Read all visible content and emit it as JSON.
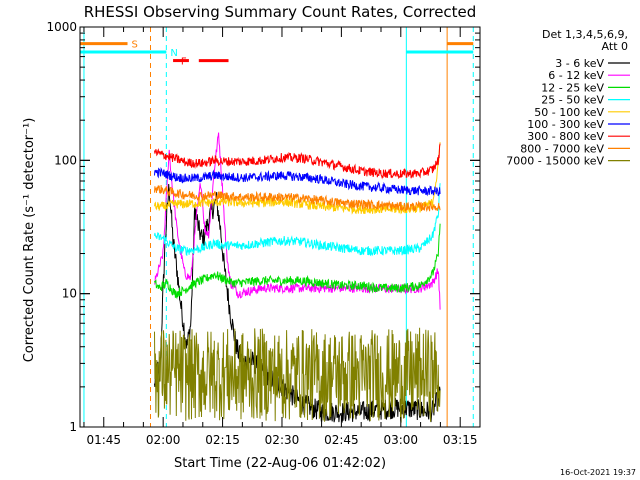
{
  "chart_data": {
    "type": "line",
    "title": "RHESSI Observing Summary Count Rates, Corrected",
    "xlabel": "Start Time (22-Aug-06 01:42:02)",
    "ylabel": "Corrected Count Rate (s⁻¹ detector⁻¹)",
    "yscale": "log",
    "ylim": [
      1,
      1000
    ],
    "xlim_minutes": [
      99,
      200
    ],
    "x_ticks": [
      {
        "label": "01:45",
        "m": 105
      },
      {
        "label": "02:00",
        "m": 120
      },
      {
        "label": "02:15",
        "m": 135
      },
      {
        "label": "02:30",
        "m": 150
      },
      {
        "label": "02:45",
        "m": 165
      },
      {
        "label": "03:00",
        "m": 180
      },
      {
        "label": "03:15",
        "m": 195
      }
    ],
    "y_ticks": [
      {
        "label": "1",
        "v": 1
      },
      {
        "label": "10",
        "v": 10
      },
      {
        "label": "100",
        "v": 100
      },
      {
        "label": "1000",
        "v": 1000
      }
    ],
    "legend_header": [
      "Det 1,3,4,5,6,9,",
      "Att 0"
    ],
    "footer": "16-Oct-2021 19:37",
    "series": [
      {
        "name": "3 - 6 keV",
        "color": "#000000",
        "points": [
          [
            117.8,
            2
          ],
          [
            118.5,
            3
          ],
          [
            119,
            2
          ],
          [
            120.5,
            25
          ],
          [
            121.5,
            65
          ],
          [
            122,
            40
          ],
          [
            122.5,
            25
          ],
          [
            123.5,
            15
          ],
          [
            124.5,
            8
          ],
          [
            126,
            4
          ],
          [
            127,
            6
          ],
          [
            128,
            45
          ],
          [
            129,
            30
          ],
          [
            130,
            25
          ],
          [
            132,
            40
          ],
          [
            133.5,
            50
          ],
          [
            134.5,
            30
          ],
          [
            135.5,
            15
          ],
          [
            137,
            7
          ],
          [
            138.5,
            4
          ],
          [
            140,
            3
          ],
          [
            142,
            3.2
          ],
          [
            146,
            2.5
          ],
          [
            150,
            2
          ],
          [
            155,
            1.5
          ],
          [
            160,
            1.3
          ],
          [
            170,
            1.3
          ],
          [
            180,
            1.4
          ],
          [
            188,
            1.3
          ],
          [
            190,
            1.8
          ]
        ]
      },
      {
        "name": "6 - 12 keV",
        "color": "#ff00ff",
        "points": [
          [
            117.8,
            12
          ],
          [
            118.5,
            14
          ],
          [
            120,
            20
          ],
          [
            121.5,
            120
          ],
          [
            122.5,
            55
          ],
          [
            123.5,
            30
          ],
          [
            124.5,
            20
          ],
          [
            125.5,
            14
          ],
          [
            127,
            13
          ],
          [
            128.5,
            40
          ],
          [
            129.5,
            70
          ],
          [
            130.5,
            30
          ],
          [
            131.5,
            28
          ],
          [
            133,
            90
          ],
          [
            134,
            160
          ],
          [
            135,
            60
          ],
          [
            136,
            20
          ],
          [
            137,
            12
          ],
          [
            139,
            10
          ],
          [
            145,
            11
          ],
          [
            150,
            11
          ],
          [
            160,
            11
          ],
          [
            170,
            11
          ],
          [
            180,
            10.8
          ],
          [
            185,
            11
          ],
          [
            188,
            12
          ],
          [
            189.5,
            15
          ],
          [
            190,
            7
          ]
        ]
      },
      {
        "name": "12 - 25 keV",
        "color": "#00dd00",
        "points": [
          [
            117.8,
            12
          ],
          [
            119,
            11
          ],
          [
            121,
            12
          ],
          [
            123,
            10
          ],
          [
            125,
            10.5
          ],
          [
            128,
            12
          ],
          [
            131,
            13
          ],
          [
            133,
            14
          ],
          [
            135,
            13
          ],
          [
            138,
            12
          ],
          [
            145,
            12.5
          ],
          [
            150,
            12.5
          ],
          [
            155,
            12.5
          ],
          [
            160,
            12
          ],
          [
            165,
            11.5
          ],
          [
            170,
            11.5
          ],
          [
            175,
            11
          ],
          [
            180,
            11
          ],
          [
            185,
            11.5
          ],
          [
            188,
            14
          ],
          [
            189.5,
            20
          ],
          [
            190,
            40
          ]
        ]
      },
      {
        "name": "25 - 50 keV",
        "color": "#00ffff",
        "points": [
          [
            117.8,
            27
          ],
          [
            120,
            26
          ],
          [
            123,
            22
          ],
          [
            126,
            21
          ],
          [
            130,
            22
          ],
          [
            133,
            24
          ],
          [
            135,
            23
          ],
          [
            140,
            23
          ],
          [
            145,
            24
          ],
          [
            150,
            25
          ],
          [
            155,
            24.5
          ],
          [
            160,
            23
          ],
          [
            165,
            22
          ],
          [
            170,
            21
          ],
          [
            175,
            21
          ],
          [
            180,
            21
          ],
          [
            185,
            22
          ],
          [
            188,
            27
          ],
          [
            189.5,
            40
          ],
          [
            190,
            80
          ]
        ]
      },
      {
        "name": "50 - 100 keV",
        "color": "#ffcc00",
        "points": [
          [
            117.8,
            45
          ],
          [
            120,
            45
          ],
          [
            123,
            47
          ],
          [
            126,
            47
          ],
          [
            130,
            48
          ],
          [
            135,
            49
          ],
          [
            140,
            48
          ],
          [
            145,
            48
          ],
          [
            150,
            49
          ],
          [
            155,
            47
          ],
          [
            160,
            45
          ],
          [
            165,
            44
          ],
          [
            170,
            43
          ],
          [
            175,
            43
          ],
          [
            180,
            43
          ],
          [
            185,
            44
          ],
          [
            188,
            48
          ],
          [
            189.5,
            90
          ],
          [
            190,
            160
          ]
        ]
      },
      {
        "name": "100 - 300 keV",
        "color": "#0000ff",
        "points": [
          [
            117.8,
            82
          ],
          [
            120,
            80
          ],
          [
            123,
            75
          ],
          [
            126,
            73
          ],
          [
            130,
            74
          ],
          [
            133,
            77
          ],
          [
            135,
            76
          ],
          [
            140,
            74
          ],
          [
            145,
            75
          ],
          [
            150,
            77
          ],
          [
            155,
            75
          ],
          [
            160,
            72
          ],
          [
            165,
            67
          ],
          [
            170,
            64
          ],
          [
            175,
            62
          ],
          [
            180,
            60
          ],
          [
            185,
            59
          ],
          [
            188,
            59
          ],
          [
            190,
            58
          ]
        ]
      },
      {
        "name": "300 - 800 keV",
        "color": "#ff0000",
        "points": [
          [
            117.8,
            115
          ],
          [
            120,
            110
          ],
          [
            123,
            103
          ],
          [
            126,
            96
          ],
          [
            130,
            95
          ],
          [
            133,
            100
          ],
          [
            135,
            98
          ],
          [
            140,
            98
          ],
          [
            145,
            100
          ],
          [
            150,
            105
          ],
          [
            155,
            104
          ],
          [
            160,
            97
          ],
          [
            165,
            90
          ],
          [
            170,
            83
          ],
          [
            175,
            80
          ],
          [
            180,
            79
          ],
          [
            185,
            80
          ],
          [
            188,
            85
          ],
          [
            189.5,
            100
          ],
          [
            190,
            135
          ]
        ]
      },
      {
        "name": "800 - 7000 keV",
        "color": "#ff8000",
        "points": [
          [
            117.8,
            62
          ],
          [
            120,
            60
          ],
          [
            123,
            57
          ],
          [
            126,
            55
          ],
          [
            130,
            54
          ],
          [
            133,
            55
          ],
          [
            135,
            54
          ],
          [
            140,
            53
          ],
          [
            145,
            53
          ],
          [
            150,
            53
          ],
          [
            155,
            52
          ],
          [
            160,
            50
          ],
          [
            165,
            48
          ],
          [
            170,
            47
          ],
          [
            175,
            46
          ],
          [
            180,
            45
          ],
          [
            185,
            45
          ],
          [
            188,
            45
          ],
          [
            190,
            45
          ]
        ]
      },
      {
        "name": "7000 - 15000 keV",
        "color": "#808000",
        "points": [
          [
            117.8,
            2.4
          ],
          [
            119,
            2.6
          ],
          [
            121,
            2.5
          ],
          [
            124,
            2.5
          ],
          [
            128,
            2.4
          ],
          [
            132,
            2.5
          ],
          [
            136,
            2.5
          ],
          [
            140,
            2.4
          ],
          [
            145,
            2.5
          ],
          [
            150,
            2.4
          ],
          [
            155,
            2.5
          ],
          [
            160,
            2.4
          ],
          [
            165,
            2.5
          ],
          [
            170,
            2.4
          ],
          [
            175,
            2.5
          ],
          [
            180,
            2.4
          ],
          [
            185,
            2.5
          ],
          [
            190,
            2.4
          ]
        ]
      }
    ],
    "verticals": [
      {
        "m": 100,
        "color": "#00ffff",
        "style": "solid"
      },
      {
        "m": 116.8,
        "color": "#ff8000",
        "style": "dashed"
      },
      {
        "m": 120.8,
        "color": "#00ffff",
        "style": "dashed"
      },
      {
        "m": 181.4,
        "color": "#00ffff",
        "style": "solid"
      },
      {
        "m": 191.7,
        "color": "#ff8000",
        "style": "solid"
      },
      {
        "m": 198.3,
        "color": "#00ffff",
        "style": "dashed"
      }
    ],
    "flags": [
      {
        "label": "S",
        "color": "#ff8000",
        "segments": [
          [
            99,
            111
          ],
          [
            191.7,
            198.3
          ]
        ],
        "v": 750
      },
      {
        "label": "N",
        "color": "#00ffff",
        "segments": [
          [
            99,
            120.8
          ],
          [
            181.4,
            198.3
          ]
        ],
        "v": 650
      },
      {
        "label": "F",
        "color": "#ff0000",
        "segments": [
          [
            122.5,
            126.5
          ],
          [
            129,
            136.5
          ]
        ],
        "v": 560
      }
    ]
  }
}
